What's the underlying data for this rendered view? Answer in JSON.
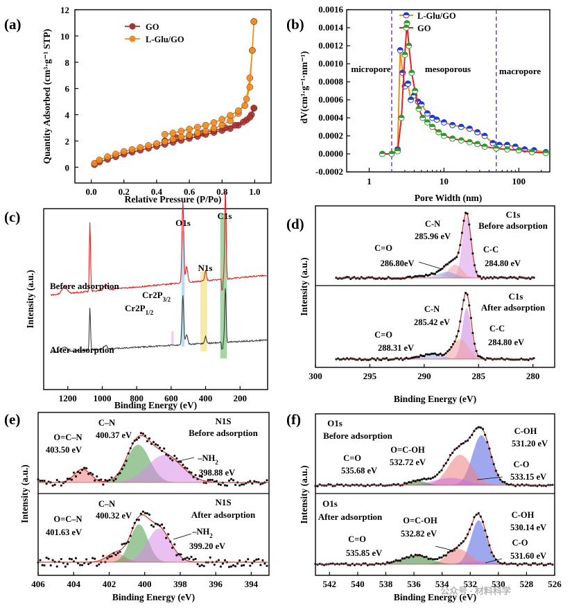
{
  "figure_credit": "公众号 · 材料科学",
  "chart_data": [
    {
      "panel": "(a)",
      "type": "line",
      "xlabel": "Relative Pressure (P/Po)",
      "ylabel": "Quantity Adsorbed (cm³·g⁻¹ STP)",
      "xlim": [
        -0.1,
        1.1
      ],
      "ylim": [
        -1.2,
        12
      ],
      "xticks": [
        "0.0",
        "0.2",
        "0.4",
        "0.6",
        "0.8",
        "1.0"
      ],
      "yticks": [
        "0",
        "2",
        "4",
        "6",
        "8",
        "10",
        "12"
      ],
      "series": [
        {
          "name": "GO",
          "color": "#a83232",
          "adsorption": [
            [
              0.02,
              0.2
            ],
            [
              0.05,
              0.4
            ],
            [
              0.1,
              0.6
            ],
            [
              0.15,
              0.8
            ],
            [
              0.2,
              1.0
            ],
            [
              0.25,
              1.15
            ],
            [
              0.3,
              1.3
            ],
            [
              0.35,
              1.45
            ],
            [
              0.4,
              1.6
            ],
            [
              0.45,
              1.75
            ],
            [
              0.5,
              1.9
            ],
            [
              0.55,
              2.05
            ],
            [
              0.6,
              2.2
            ],
            [
              0.65,
              2.35
            ],
            [
              0.7,
              2.5
            ],
            [
              0.75,
              2.65
            ],
            [
              0.8,
              2.8
            ],
            [
              0.85,
              2.95
            ],
            [
              0.9,
              3.2
            ],
            [
              0.95,
              3.6
            ],
            [
              0.98,
              4.0
            ],
            [
              0.995,
              4.5
            ]
          ],
          "desorption": [
            [
              0.995,
              4.5
            ],
            [
              0.97,
              3.8
            ],
            [
              0.93,
              3.45
            ],
            [
              0.88,
              3.2
            ],
            [
              0.82,
              3.0
            ],
            [
              0.75,
              2.8
            ],
            [
              0.68,
              2.6
            ],
            [
              0.6,
              2.4
            ],
            [
              0.52,
              2.25
            ],
            [
              0.45,
              2.0
            ]
          ]
        },
        {
          "name": "L-Glu/GO",
          "color": "#f08c1e",
          "adsorption": [
            [
              0.02,
              0.3
            ],
            [
              0.05,
              0.55
            ],
            [
              0.1,
              0.8
            ],
            [
              0.15,
              1.0
            ],
            [
              0.2,
              1.2
            ],
            [
              0.25,
              1.35
            ],
            [
              0.3,
              1.5
            ],
            [
              0.35,
              1.65
            ],
            [
              0.4,
              1.8
            ],
            [
              0.45,
              1.95
            ],
            [
              0.5,
              2.15
            ],
            [
              0.55,
              2.3
            ],
            [
              0.6,
              2.45
            ],
            [
              0.65,
              2.6
            ],
            [
              0.7,
              2.75
            ],
            [
              0.75,
              2.95
            ],
            [
              0.8,
              3.2
            ],
            [
              0.85,
              3.55
            ],
            [
              0.9,
              4.1
            ],
            [
              0.95,
              5.2
            ],
            [
              0.97,
              6.8
            ],
            [
              0.985,
              8.9
            ],
            [
              0.995,
              11.1
            ]
          ],
          "desorption": [
            [
              0.995,
              11.1
            ],
            [
              0.985,
              8.9
            ],
            [
              0.97,
              6.1
            ],
            [
              0.94,
              4.7
            ],
            [
              0.9,
              4.3
            ],
            [
              0.85,
              3.95
            ],
            [
              0.8,
              3.65
            ],
            [
              0.75,
              3.4
            ],
            [
              0.7,
              3.2
            ],
            [
              0.65,
              3.05
            ],
            [
              0.6,
              2.9
            ],
            [
              0.55,
              2.75
            ],
            [
              0.5,
              2.6
            ],
            [
              0.45,
              2.5
            ]
          ]
        }
      ]
    },
    {
      "panel": "(b)",
      "type": "line",
      "xscale": "log",
      "xlabel": "Pore Width (nm)",
      "ylabel": "dV(cm³·g⁻¹·nm⁻¹)",
      "xlim": [
        0.5,
        260
      ],
      "ylim": [
        -0.0002,
        0.0016
      ],
      "xticks": [
        "1",
        "10",
        "100"
      ],
      "yticks": [
        "-0.0002",
        "0.0000",
        "0.0002",
        "0.0004",
        "0.0006",
        "0.0008",
        "0.0010",
        "0.0012",
        "0.0014",
        "0.0016"
      ],
      "regions": [
        "micropore",
        "mesoporous",
        "macropore"
      ],
      "region_bounds_nm": [
        2,
        50
      ],
      "series": [
        {
          "name": "L-Glu/GO",
          "color": "#f08c1e",
          "marker_color": "#1e3ad6",
          "points": [
            [
              1.5,
              0.0
            ],
            [
              2.0,
              0.0
            ],
            [
              2.4,
              5e-05
            ],
            [
              2.6,
              0.00115
            ],
            [
              2.8,
              0.0009
            ],
            [
              3.0,
              0.00075
            ],
            [
              3.3,
              0.00078
            ],
            [
              3.6,
              0.0006
            ],
            [
              4.0,
              0.00065
            ],
            [
              4.5,
              0.00058
            ],
            [
              5.0,
              0.00055
            ],
            [
              6.0,
              0.00045
            ],
            [
              7.0,
              0.0004
            ],
            [
              8.0,
              0.00038
            ],
            [
              10,
              0.00035
            ],
            [
              13,
              0.00032
            ],
            [
              17,
              0.0003
            ],
            [
              22,
              0.00028
            ],
            [
              28,
              0.00024
            ],
            [
              35,
              0.0002
            ],
            [
              45,
              0.00012
            ],
            [
              55,
              0.0001
            ],
            [
              70,
              0.0001
            ],
            [
              90,
              8e-05
            ],
            [
              120,
              5e-05
            ],
            [
              160,
              4e-05
            ],
            [
              230,
              2e-05
            ]
          ]
        },
        {
          "name": "GO",
          "color": "#e52020",
          "marker_color": "#2a9a2a",
          "points": [
            [
              1.5,
              0.0
            ],
            [
              2.0,
              0.0
            ],
            [
              2.4,
              3e-05
            ],
            [
              2.7,
              0.0004
            ],
            [
              3.0,
              0.0011
            ],
            [
              3.2,
              0.00145
            ],
            [
              3.4,
              0.0012
            ],
            [
              3.7,
              0.0009
            ],
            [
              4.1,
              0.0007
            ],
            [
              4.6,
              0.0005
            ],
            [
              5.2,
              0.0004
            ],
            [
              6.0,
              0.00035
            ],
            [
              7.0,
              0.0003
            ],
            [
              8.5,
              0.00024
            ],
            [
              10,
              0.0002
            ],
            [
              13,
              0.00017
            ],
            [
              17,
              0.00015
            ],
            [
              22,
              0.00013
            ],
            [
              28,
              0.00011
            ],
            [
              35,
              8e-05
            ],
            [
              50,
              6e-05
            ],
            [
              70,
              5e-05
            ],
            [
              100,
              4e-05
            ],
            [
              150,
              2e-05
            ],
            [
              230,
              1e-05
            ]
          ]
        }
      ]
    },
    {
      "panel": "(c)",
      "type": "line",
      "xlabel": "Binding Energy (eV)",
      "ylabel": "Intensity (a.u.)",
      "xlim": [
        1340,
        40
      ],
      "xticks": [
        "1200",
        "1000",
        "800",
        "600",
        "400",
        "200"
      ],
      "series": [
        {
          "name": "Before adsorption",
          "color": "#e01f1f"
        },
        {
          "name": "After adsorption",
          "color": "#3a3a3a"
        }
      ],
      "peaks": [
        {
          "label": "O1s",
          "center": 532,
          "color": "#7ec3f0"
        },
        {
          "label": "N1s",
          "center": 400,
          "color": "#f2e27a"
        },
        {
          "label": "C1s",
          "center": 284.8,
          "color": "#6db86d"
        },
        {
          "label": "Cr2P3/2",
          "center": 577,
          "color": "#f2a0d2"
        },
        {
          "label": "Cr2P1/2",
          "center": 587,
          "color": "#f2a0d2"
        }
      ]
    },
    {
      "panel": "(d)",
      "type": "line",
      "xlabel": "Binding Energy (eV)",
      "ylabel": "Intensity (a.u.)",
      "xlim": [
        300,
        278
      ],
      "xticks": [
        "300",
        "295",
        "290",
        "285",
        "280"
      ],
      "subplots": [
        {
          "title": "C1s",
          "subtitle": "Before adsorption",
          "components": [
            {
              "name": "C-C",
              "center": 284.8,
              "label": "284.80 eV"
            },
            {
              "name": "C-N",
              "center": 285.96,
              "label": "285.96 eV"
            },
            {
              "name": "C=O",
              "center": 286.8,
              "label": "286.80eV"
            }
          ]
        },
        {
          "title": "C1s",
          "subtitle": "After adsorption",
          "components": [
            {
              "name": "C-C",
              "center": 284.8,
              "label": "284.80 eV"
            },
            {
              "name": "C-N",
              "center": 285.42,
              "label": "285.42 eV"
            },
            {
              "name": "C=O",
              "center": 288.31,
              "label": "288.31 eV"
            }
          ]
        }
      ]
    },
    {
      "panel": "(e)",
      "type": "line",
      "xlabel": "Binding Energy (eV)",
      "ylabel": "Intensity (a.u.)",
      "xlim": [
        406,
        393
      ],
      "xticks": [
        "406",
        "404",
        "402",
        "400",
        "398",
        "396",
        "394"
      ],
      "subplots": [
        {
          "title": "N1S",
          "subtitle": "Before  adsorption",
          "components": [
            {
              "name": "O=C–N",
              "center": 403.5,
              "label": "403.50 eV"
            },
            {
              "name": "C–N",
              "center": 400.37,
              "label": "400.37 eV"
            },
            {
              "name": "–NH2",
              "center": 398.88,
              "label": "398.88 eV"
            }
          ]
        },
        {
          "title": "N1S",
          "subtitle": "After  adsorption",
          "components": [
            {
              "name": "O=C–N",
              "center": 401.63,
              "label": "401.63 eV"
            },
            {
              "name": "C–N",
              "center": 400.32,
              "label": "400.32 eV"
            },
            {
              "name": "–NH2",
              "center": 399.2,
              "label": "399.20 eV"
            }
          ]
        }
      ]
    },
    {
      "panel": "(f)",
      "type": "line",
      "xlabel": "Binding Energy (eV)",
      "ylabel": "Intensity (a.u.)",
      "xlim": [
        543,
        526
      ],
      "xticks": [
        "542",
        "540",
        "538",
        "536",
        "534",
        "532",
        "530",
        "528",
        "526"
      ],
      "subplots": [
        {
          "title": "O1s",
          "subtitle": "Before adsorption",
          "components": [
            {
              "name": "C-OH",
              "center": 531.2,
              "label": "531.20 eV"
            },
            {
              "name": "O=C-OH",
              "center": 532.72,
              "label": "532.72 eV"
            },
            {
              "name": "C=O",
              "center": 535.68,
              "label": "535.68 eV"
            },
            {
              "name": "C-O",
              "center": 533.15,
              "label": "533.15 eV"
            }
          ]
        },
        {
          "title": "O1s",
          "subtitle": "After adsorption",
          "components": [
            {
              "name": "C-OH",
              "center": 530.14,
              "label": "530.14 eV"
            },
            {
              "name": "O=C-OH",
              "center": 532.82,
              "label": "532.82 eV"
            },
            {
              "name": "C=O",
              "center": 535.85,
              "label": "535.85 eV"
            },
            {
              "name": "C-O",
              "center": 531.6,
              "label": "531.60 eV"
            }
          ]
        }
      ]
    }
  ]
}
